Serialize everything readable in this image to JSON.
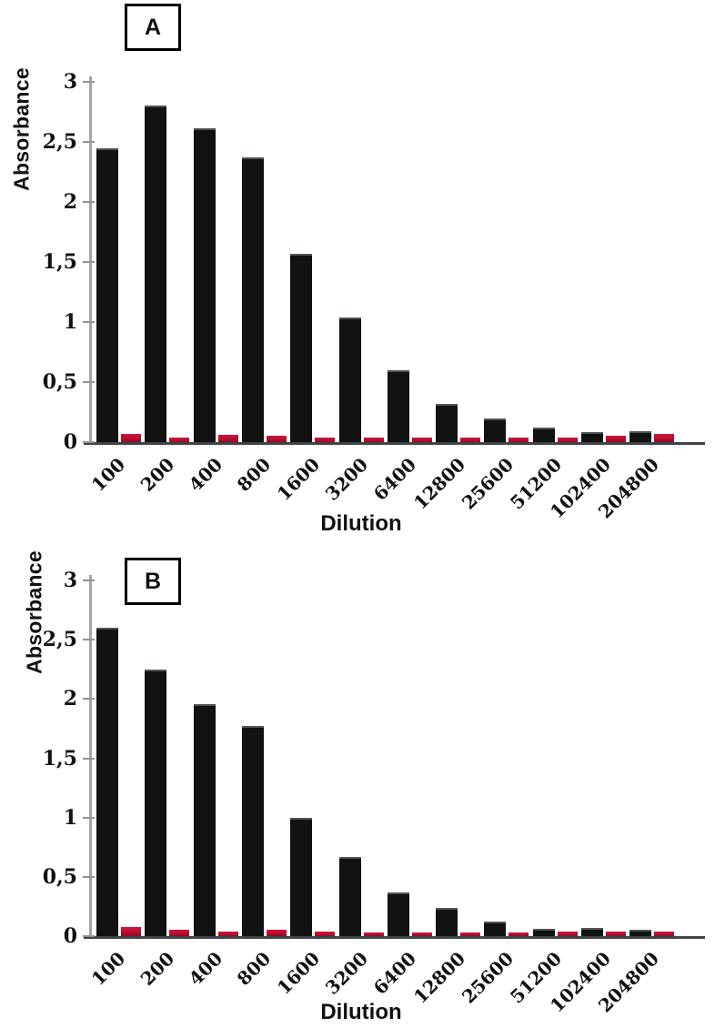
{
  "figure": {
    "background": "#ffffff",
    "panels": [
      {
        "label": "A"
      },
      {
        "label": "B"
      }
    ]
  },
  "colors": {
    "bar_primary": "#121212",
    "bar_secondary": "#b80f30",
    "x_axis_line": "#3e4449",
    "y_axis_line": "#9fa6aa",
    "text": "#111111"
  },
  "chart_data": [
    {
      "type": "bar",
      "panel_label": "A",
      "title": "",
      "xlabel": "Dilution",
      "ylabel": "Absorbance",
      "ylim": [
        0,
        3
      ],
      "grid": false,
      "legend": "none",
      "ytick_labels": [
        "0",
        "0,5",
        "1",
        "1,5",
        "2",
        "2,5",
        "3"
      ],
      "ytick_values": [
        0,
        0.5,
        1,
        1.5,
        2,
        2.5,
        3
      ],
      "categories": [
        "100",
        "200",
        "400",
        "800",
        "1600",
        "3200",
        "6400",
        "12800",
        "25600",
        "51200",
        "102400",
        "204800"
      ],
      "series": [
        {
          "name": "black",
          "color": "#121212",
          "values": [
            2.45,
            2.8,
            2.61,
            2.37,
            1.57,
            1.04,
            0.6,
            0.32,
            0.2,
            0.12,
            0.08,
            0.09
          ]
        },
        {
          "name": "red",
          "color": "#b80f30",
          "values": [
            0.07,
            0.04,
            0.06,
            0.05,
            0.04,
            0.04,
            0.04,
            0.04,
            0.04,
            0.04,
            0.05,
            0.07
          ]
        }
      ]
    },
    {
      "type": "bar",
      "panel_label": "B",
      "title": "",
      "xlabel": "Dilution",
      "ylabel": "Absorbance",
      "ylim": [
        0,
        3
      ],
      "grid": false,
      "legend": "none",
      "ytick_labels": [
        "0",
        "0,5",
        "1",
        "1,5",
        "2",
        "2,5",
        "3"
      ],
      "ytick_values": [
        0,
        0.5,
        1,
        1.5,
        2,
        2.5,
        3
      ],
      "categories": [
        "100",
        "200",
        "400",
        "800",
        "1600",
        "3200",
        "6400",
        "12800",
        "25600",
        "51200",
        "102400",
        "204800"
      ],
      "series": [
        {
          "name": "black",
          "color": "#121212",
          "values": [
            2.6,
            2.25,
            1.96,
            1.77,
            1.0,
            0.67,
            0.37,
            0.24,
            0.12,
            0.06,
            0.07,
            0.05
          ]
        },
        {
          "name": "red",
          "color": "#b80f30",
          "values": [
            0.08,
            0.05,
            0.04,
            0.05,
            0.04,
            0.03,
            0.03,
            0.03,
            0.03,
            0.04,
            0.04,
            0.04
          ]
        }
      ]
    }
  ]
}
